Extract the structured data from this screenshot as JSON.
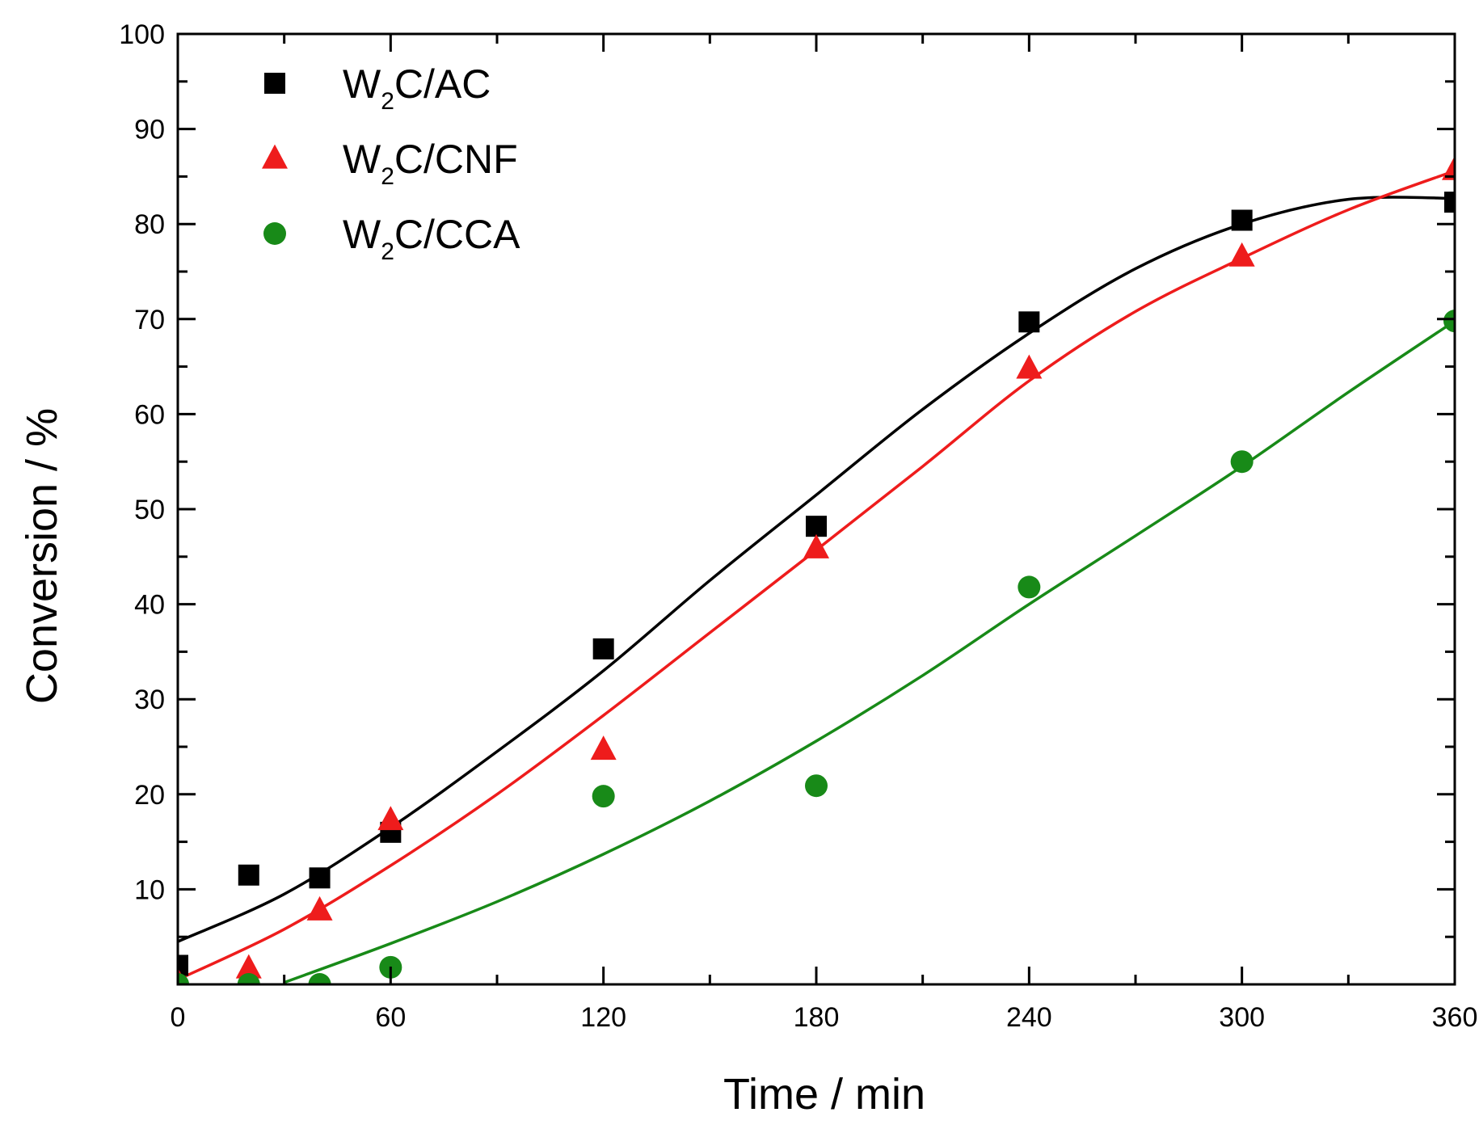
{
  "chart_data": {
    "type": "scatter",
    "title": "",
    "xlabel": "Time / min",
    "ylabel": "Conversion / %",
    "xlim": [
      0,
      360
    ],
    "ylim": [
      0,
      100
    ],
    "xticks": [
      0,
      60,
      120,
      180,
      240,
      300,
      360
    ],
    "yticks": [
      10,
      20,
      30,
      40,
      50,
      60,
      70,
      80,
      90,
      100
    ],
    "xtick_labels": [
      "0",
      "60",
      "120",
      "180",
      "240",
      "300",
      "360"
    ],
    "ytick_labels": [
      "10",
      "20",
      "30",
      "40",
      "50",
      "60",
      "70",
      "80",
      "90",
      "100"
    ],
    "legend_position": "top-left",
    "series": [
      {
        "name": "W2C/AC",
        "label_main": "W",
        "label_sub": "2",
        "label_rest": "C/AC",
        "marker": "square",
        "color": "#000000",
        "x": [
          0,
          20,
          40,
          60,
          120,
          180,
          240,
          300,
          360
        ],
        "y": [
          2.0,
          11.5,
          11.2,
          16.0,
          35.3,
          48.2,
          69.7,
          80.4,
          82.3
        ],
        "fit_x": [
          0,
          30,
          60,
          90,
          120,
          150,
          180,
          210,
          240,
          270,
          300,
          330,
          360
        ],
        "fit_y": [
          4.5,
          9.5,
          16.5,
          24.5,
          33.0,
          42.5,
          51.5,
          60.5,
          68.5,
          75.3,
          80.0,
          82.6,
          82.7
        ]
      },
      {
        "name": "W2C/CNF",
        "label_main": "W",
        "label_sub": "2",
        "label_rest": "C/CNF",
        "marker": "triangle",
        "color": "#ee1c1c",
        "x": [
          0,
          20,
          40,
          60,
          120,
          180,
          240,
          300,
          360
        ],
        "y": [
          0.3,
          1.7,
          7.8,
          17.3,
          24.7,
          45.9,
          64.8,
          76.6,
          85.7
        ],
        "fit_x": [
          0,
          30,
          60,
          90,
          120,
          150,
          180,
          210,
          240,
          270,
          300,
          330,
          360
        ],
        "fit_y": [
          0.5,
          5.8,
          12.5,
          20.0,
          28.3,
          37.0,
          45.7,
          54.5,
          63.5,
          70.8,
          76.4,
          81.5,
          85.6
        ]
      },
      {
        "name": "W2C/CCA",
        "label_main": "W",
        "label_sub": "2",
        "label_rest": "C/CCA",
        "marker": "circle",
        "color": "#188a18",
        "x": [
          0,
          20,
          40,
          60,
          120,
          180,
          240,
          300,
          360
        ],
        "y": [
          0.0,
          0.0,
          0.0,
          1.8,
          19.8,
          20.9,
          41.8,
          55.0,
          69.8
        ],
        "fit_x": [
          30,
          60,
          90,
          120,
          150,
          180,
          210,
          240,
          270,
          300,
          330,
          360
        ],
        "fit_y": [
          0.2,
          4.3,
          8.7,
          13.7,
          19.3,
          25.6,
          32.5,
          40.0,
          47.2,
          54.5,
          62.3,
          69.8
        ]
      }
    ]
  }
}
